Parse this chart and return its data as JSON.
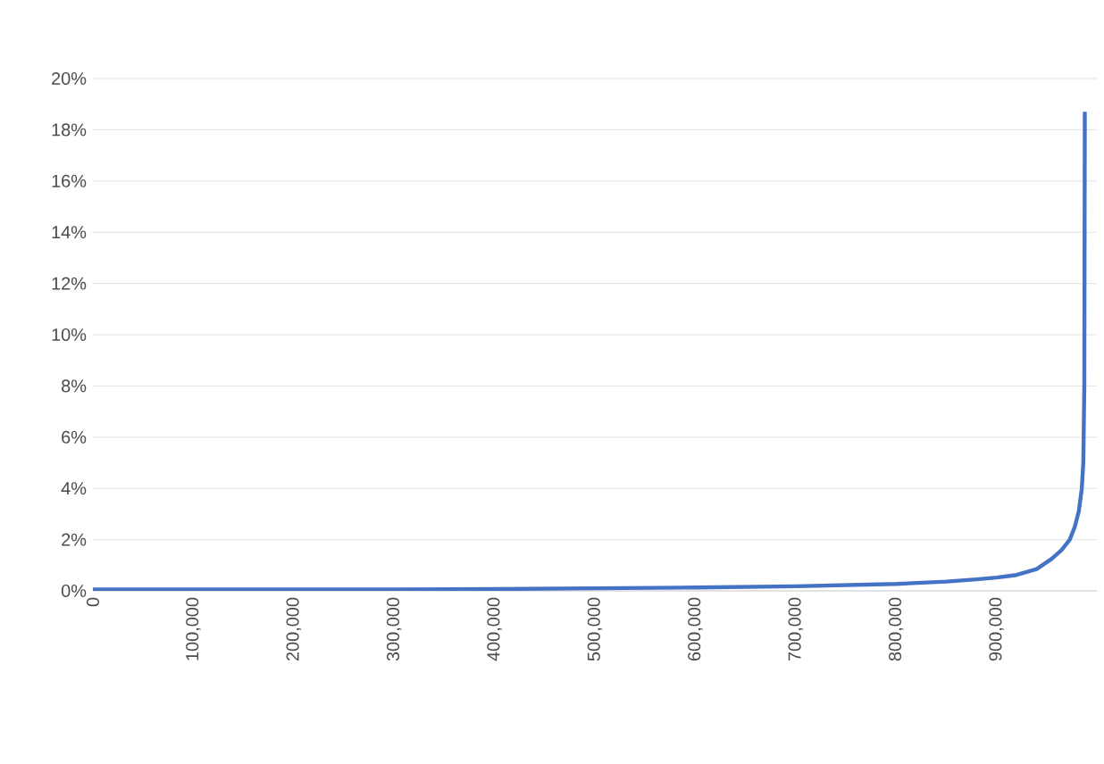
{
  "chart_data": {
    "type": "line",
    "x": [
      0,
      100000,
      200000,
      300000,
      400000,
      500000,
      600000,
      700000,
      800000,
      850000,
      880000,
      900000,
      920000,
      940000,
      955000,
      965000,
      973000,
      978000,
      982000,
      985000,
      986500,
      987500,
      988000
    ],
    "series": [
      {
        "color": "#4472c4",
        "values": [
          0.05,
          0.05,
          0.05,
          0.05,
          0.07,
          0.1,
          0.13,
          0.18,
          0.27,
          0.36,
          0.45,
          0.52,
          0.62,
          0.85,
          1.25,
          1.6,
          2.0,
          2.5,
          3.1,
          4.0,
          5.0,
          8.0,
          18.7
        ]
      }
    ],
    "xlim": [
      0,
      1000000
    ],
    "xticks": [
      0,
      {
        "value": 100000,
        "label": "100,000"
      },
      {
        "value": 200000,
        "label": "200,000"
      },
      {
        "value": 300000,
        "label": "300,000"
      },
      {
        "value": 400000,
        "label": "400,000"
      },
      {
        "value": 500000,
        "label": "500,000"
      },
      {
        "value": 600000,
        "label": "600,000"
      },
      {
        "value": 700000,
        "label": "700,000"
      },
      {
        "value": 800000,
        "label": "800,000"
      },
      {
        "value": 900000,
        "label": "900,000"
      }
    ],
    "ylim": [
      0,
      20
    ],
    "yticks": [
      {
        "value": 0,
        "label": "0%"
      },
      {
        "value": 2,
        "label": "2%"
      },
      {
        "value": 4,
        "label": "4%"
      },
      {
        "value": 6,
        "label": "6%"
      },
      {
        "value": 8,
        "label": "8%"
      },
      {
        "value": 10,
        "label": "10%"
      },
      {
        "value": 12,
        "label": "12%"
      },
      {
        "value": 14,
        "label": "14%"
      },
      {
        "value": 16,
        "label": "16%"
      },
      {
        "value": 18,
        "label": "18%"
      },
      {
        "value": 20,
        "label": "20%"
      }
    ],
    "grid": "y",
    "marker": "none",
    "line_style": "solid"
  }
}
